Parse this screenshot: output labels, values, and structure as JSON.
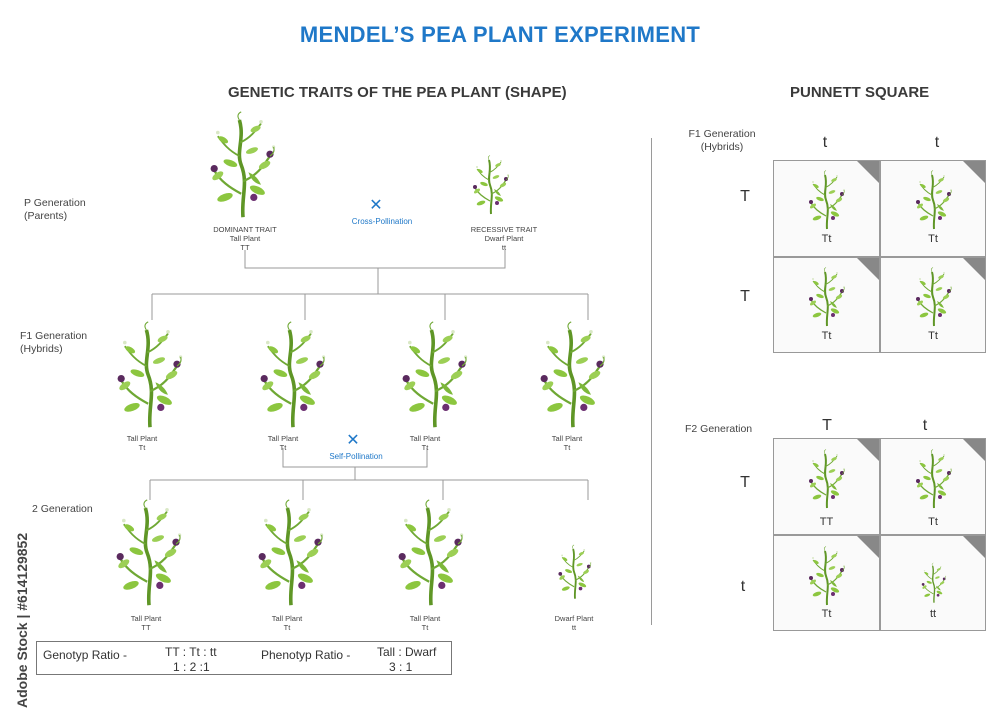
{
  "title": "MENDEL’S PEA PLANT EXPERIMENT",
  "left": {
    "heading": "GENETIC TRAITS OF THE PEA PLANT (SHAPE)",
    "p_generation": {
      "label_line1": "P Generation",
      "label_line2": "(Parents)"
    },
    "dominant": {
      "line1": "DOMINANT TRAIT",
      "line2": "Tall Plant",
      "line3": "TT"
    },
    "recessive": {
      "line1": "RECESSIVE TRAIT",
      "line2": "Dwarf Plant",
      "line3": "tt"
    },
    "cross_pollination": {
      "mark": "✕",
      "label": "Cross-Pollination"
    },
    "f1_generation": {
      "label_line1": "F1 Generation",
      "label_line2": "(Hybrids)"
    },
    "f1_plants": [
      {
        "name": "Tall Plant",
        "genotype": "Tt"
      },
      {
        "name": "Tall Plant",
        "genotype": "Tt"
      },
      {
        "name": "Tall Plant",
        "genotype": "Tt"
      },
      {
        "name": "Tall Plant",
        "genotype": "Tt"
      }
    ],
    "self_pollination": {
      "mark": "✕",
      "label": "Self-Pollination"
    },
    "f2_generation": {
      "label": "2 Generation"
    },
    "f2_plants": [
      {
        "name": "Tall Plant",
        "genotype": "TT"
      },
      {
        "name": "Tall Plant",
        "genotype": "Tt"
      },
      {
        "name": "Tall Plant",
        "genotype": "Tt"
      },
      {
        "name": "Dwarf Plant",
        "genotype": "tt"
      }
    ],
    "ratios": {
      "genotype_label": "Genotyp Ratio -",
      "genotype_header": "TT : Tt : tt",
      "genotype_value": "1 : 2 :1",
      "phenotype_label": "Phenotyp Ratio -",
      "phenotype_header": "Tall : Dwarf",
      "phenotype_value": "3 : 1"
    }
  },
  "right": {
    "heading": "PUNNETT SQUARE",
    "f1_square": {
      "label_line1": "F1 Generation",
      "label_line2": "(Hybrids)",
      "col_alleles": [
        "t",
        "t"
      ],
      "row_alleles": [
        "T",
        "T"
      ],
      "cells": [
        "Tt",
        "Tt",
        "Tt",
        "Tt"
      ]
    },
    "f2_square": {
      "label": "F2 Generation",
      "col_alleles": [
        "T",
        "t"
      ],
      "row_alleles": [
        "T",
        "t"
      ],
      "cells": [
        "TT",
        "Tt",
        "Tt",
        "tt"
      ]
    }
  },
  "watermark": {
    "text": "Adobe Stock | #614129852"
  },
  "colors": {
    "title": "#1f78c8",
    "stem": "#6a9e2e",
    "leaf": "#8cc63f",
    "flower": "#5a2a5e",
    "line": "#9a9a9a"
  }
}
